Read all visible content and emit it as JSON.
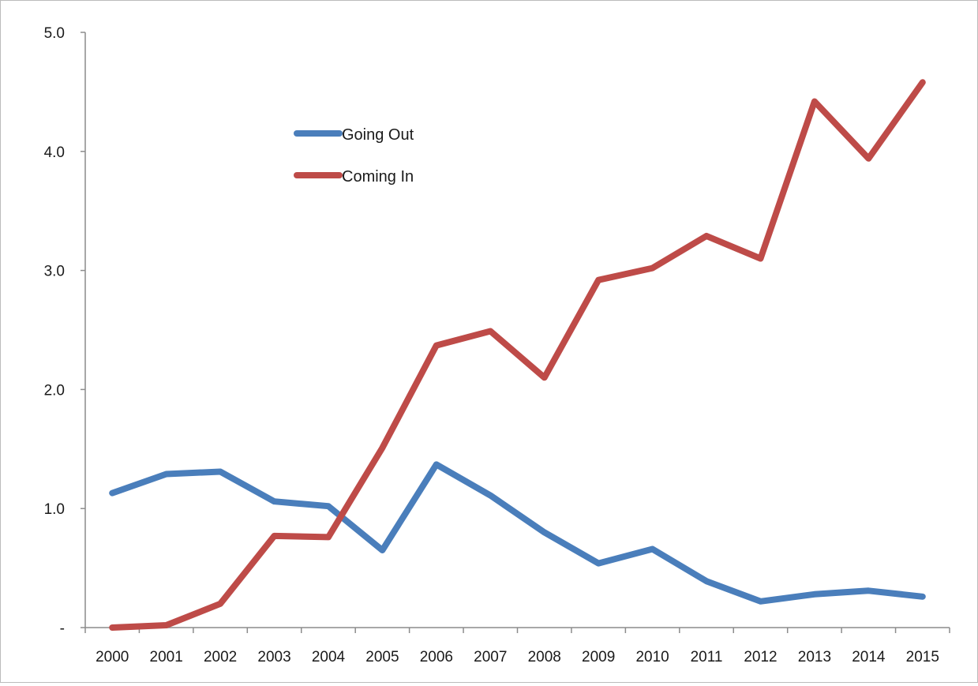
{
  "chart_data": {
    "type": "line",
    "title": "",
    "xlabel": "",
    "ylabel": "",
    "x": [
      "2000",
      "2001",
      "2002",
      "2003",
      "2004",
      "2005",
      "2006",
      "2007",
      "2008",
      "2009",
      "2010",
      "2011",
      "2012",
      "2013",
      "2014",
      "2015"
    ],
    "ylim": [
      0,
      5
    ],
    "y_ticks": [
      0,
      1,
      2,
      3,
      4,
      5
    ],
    "y_tick_labels": [
      "-",
      "1.0",
      "2.0",
      "3.0",
      "4.0",
      "5.0"
    ],
    "grid": false,
    "legend_position": "upper-left inside plot",
    "series": [
      {
        "name": "Going Out",
        "color": "#4a7ebb",
        "values": [
          1.13,
          1.29,
          1.31,
          1.06,
          1.02,
          0.65,
          1.37,
          1.11,
          0.8,
          0.54,
          0.66,
          0.39,
          0.22,
          0.28,
          0.31,
          0.26
        ]
      },
      {
        "name": "Coming In",
        "color": "#be4b48",
        "values": [
          0.0,
          0.02,
          0.2,
          0.77,
          0.76,
          1.51,
          2.37,
          2.49,
          2.1,
          2.92,
          3.02,
          3.29,
          3.1,
          4.42,
          3.94,
          4.58
        ]
      }
    ]
  }
}
